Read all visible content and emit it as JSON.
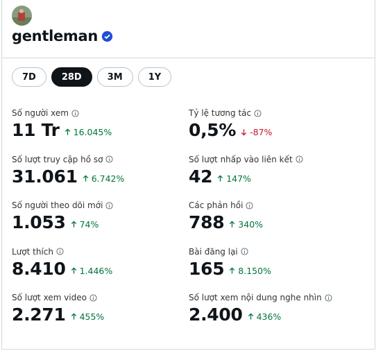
{
  "profile": {
    "name": "gentleman"
  },
  "tabs": {
    "items": [
      "7D",
      "28D",
      "3M",
      "1Y"
    ],
    "selected": 1
  },
  "metrics": [
    {
      "label": "Số người xem",
      "value": "11 Tr",
      "change": "16.045%",
      "trend": "up"
    },
    {
      "label": "Tỷ lệ tương tác",
      "value": "0,5%",
      "change": "-87%",
      "trend": "down"
    },
    {
      "label": "Số lượt truy cập hồ sơ",
      "value": "31.061",
      "change": "6.742%",
      "trend": "up"
    },
    {
      "label": "Số lượt nhấp vào liên kết",
      "value": "42",
      "change": "147%",
      "trend": "up"
    },
    {
      "label": "Số người theo dõi mới",
      "value": "1.053",
      "change": "74%",
      "trend": "up"
    },
    {
      "label": "Các phản hồi",
      "value": "788",
      "change": "340%",
      "trend": "up"
    },
    {
      "label": "Lượt thích",
      "value": "8.410",
      "change": "1.446%",
      "trend": "up"
    },
    {
      "label": "Bài đăng lại",
      "value": "165",
      "change": "8.150%",
      "trend": "up"
    },
    {
      "label": "Số lượt xem video",
      "value": "2.271",
      "change": "455%",
      "trend": "up"
    },
    {
      "label": "Số lượt xem nội dung nghe nhìn",
      "value": "2.400",
      "change": "436%",
      "trend": "up"
    }
  ]
}
